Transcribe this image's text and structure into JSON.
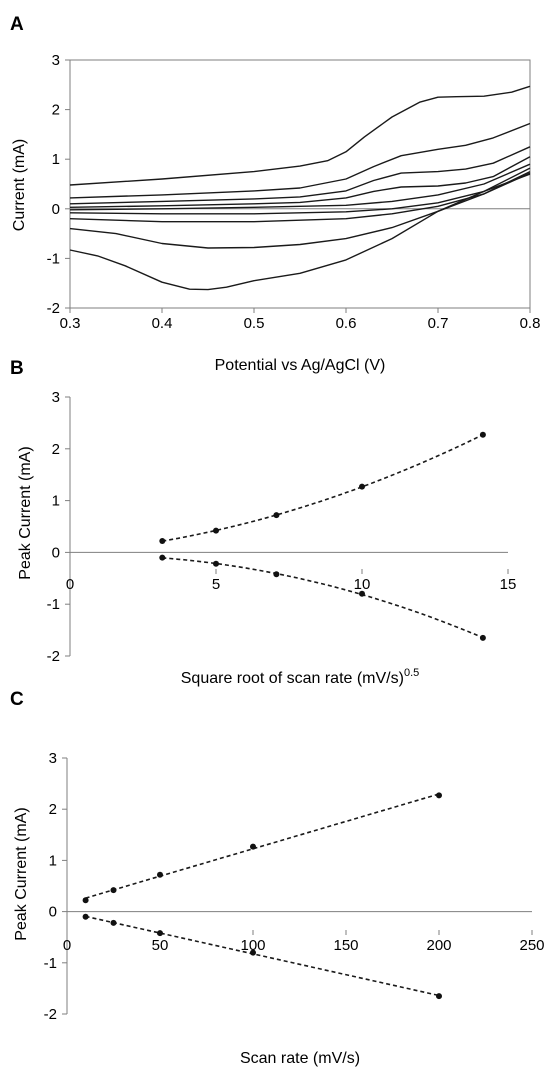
{
  "panels": [
    "A",
    "B",
    "C"
  ],
  "chart_data": [
    {
      "panel": "A",
      "type": "line",
      "title": "",
      "xlabel": "Potential vs Ag/AgCl (V)",
      "ylabel": "Current (mA)",
      "xlim": [
        0.3,
        0.8
      ],
      "ylim": [
        -2,
        3
      ],
      "xticks": [
        "0.3",
        "0.4",
        "0.5",
        "0.6",
        "0.7",
        "0.8"
      ],
      "yticks": [
        "-2",
        "-1",
        "0",
        "1",
        "2",
        "3"
      ],
      "grid": false,
      "series": [
        {
          "x": [
            0.3,
            0.4,
            0.5,
            0.55,
            0.58,
            0.6,
            0.62,
            0.65,
            0.68,
            0.7,
            0.72,
            0.75,
            0.78,
            0.8
          ],
          "y": [
            0.48,
            0.6,
            0.75,
            0.86,
            0.97,
            1.15,
            1.45,
            1.85,
            2.15,
            2.25,
            2.26,
            2.27,
            2.35,
            2.47
          ]
        },
        {
          "x": [
            0.3,
            0.4,
            0.5,
            0.55,
            0.6,
            0.63,
            0.66,
            0.7,
            0.73,
            0.76,
            0.8
          ],
          "y": [
            0.22,
            0.28,
            0.36,
            0.42,
            0.6,
            0.85,
            1.07,
            1.2,
            1.28,
            1.43,
            1.72
          ]
        },
        {
          "x": [
            0.3,
            0.4,
            0.5,
            0.55,
            0.6,
            0.63,
            0.66,
            0.7,
            0.73,
            0.76,
            0.8
          ],
          "y": [
            0.1,
            0.15,
            0.2,
            0.24,
            0.36,
            0.57,
            0.72,
            0.75,
            0.8,
            0.92,
            1.25
          ]
        },
        {
          "x": [
            0.3,
            0.4,
            0.5,
            0.55,
            0.6,
            0.63,
            0.66,
            0.7,
            0.73,
            0.76,
            0.8
          ],
          "y": [
            0.03,
            0.06,
            0.1,
            0.13,
            0.22,
            0.35,
            0.44,
            0.46,
            0.52,
            0.65,
            1.05
          ]
        },
        {
          "x": [
            0.3,
            0.4,
            0.5,
            0.6,
            0.65,
            0.7,
            0.75,
            0.8
          ],
          "y": [
            -0.02,
            0.0,
            0.03,
            0.07,
            0.15,
            0.28,
            0.5,
            0.9
          ]
        },
        {
          "x": [
            0.3,
            0.4,
            0.5,
            0.6,
            0.65,
            0.7,
            0.75,
            0.8
          ],
          "y": [
            -0.08,
            -0.1,
            -0.1,
            -0.06,
            0.0,
            0.12,
            0.35,
            0.82
          ]
        },
        {
          "x": [
            0.3,
            0.4,
            0.5,
            0.6,
            0.65,
            0.7,
            0.75,
            0.8
          ],
          "y": [
            -0.2,
            -0.26,
            -0.26,
            -0.2,
            -0.1,
            0.05,
            0.3,
            0.75
          ]
        },
        {
          "x": [
            0.3,
            0.35,
            0.4,
            0.45,
            0.5,
            0.55,
            0.6,
            0.65,
            0.7,
            0.75,
            0.8
          ],
          "y": [
            -0.4,
            -0.5,
            -0.7,
            -0.79,
            -0.78,
            -0.72,
            -0.6,
            -0.38,
            -0.05,
            0.3,
            0.72
          ]
        },
        {
          "x": [
            0.3,
            0.33,
            0.36,
            0.4,
            0.43,
            0.45,
            0.47,
            0.5,
            0.55,
            0.6,
            0.65,
            0.7,
            0.75,
            0.8
          ],
          "y": [
            -0.83,
            -0.95,
            -1.15,
            -1.48,
            -1.62,
            -1.63,
            -1.58,
            -1.45,
            -1.3,
            -1.03,
            -0.6,
            -0.05,
            0.35,
            0.7
          ]
        }
      ]
    },
    {
      "panel": "B",
      "type": "scatter",
      "title": "",
      "xlabel": "Square root of scan rate (mV/s)",
      "xlabel_superscript": "0.5",
      "ylabel": "Peak Current (mA)",
      "xlim": [
        0,
        15
      ],
      "ylim": [
        -2,
        3
      ],
      "xticks": [
        "0",
        "5",
        "10",
        "15"
      ],
      "yticks": [
        "-2",
        "-1",
        "0",
        "1",
        "2",
        "3"
      ],
      "grid": false,
      "series": [
        {
          "x": [
            3.16,
            5.0,
            7.07,
            10.0,
            14.14
          ],
          "y": [
            0.22,
            0.42,
            0.72,
            1.27,
            2.27
          ]
        },
        {
          "x": [
            3.16,
            5.0,
            7.07,
            10.0,
            14.14
          ],
          "y": [
            -0.1,
            -0.22,
            -0.42,
            -0.8,
            -1.65
          ]
        }
      ]
    },
    {
      "panel": "C",
      "type": "scatter",
      "title": "",
      "xlabel": "Scan rate (mV/s)",
      "ylabel": "Peak Current (mA)",
      "xlim": [
        0,
        250
      ],
      "ylim": [
        -2,
        3
      ],
      "xticks": [
        "0",
        "50",
        "100",
        "150",
        "200",
        "250"
      ],
      "yticks": [
        "-2",
        "-1",
        "0",
        "1",
        "2",
        "3"
      ],
      "grid": false,
      "series": [
        {
          "x": [
            10,
            25,
            50,
            100,
            200
          ],
          "y": [
            0.22,
            0.42,
            0.72,
            1.27,
            2.27
          ]
        },
        {
          "x": [
            10,
            25,
            50,
            100,
            200
          ],
          "y": [
            -0.1,
            -0.22,
            -0.42,
            -0.8,
            -1.65
          ]
        }
      ]
    }
  ]
}
